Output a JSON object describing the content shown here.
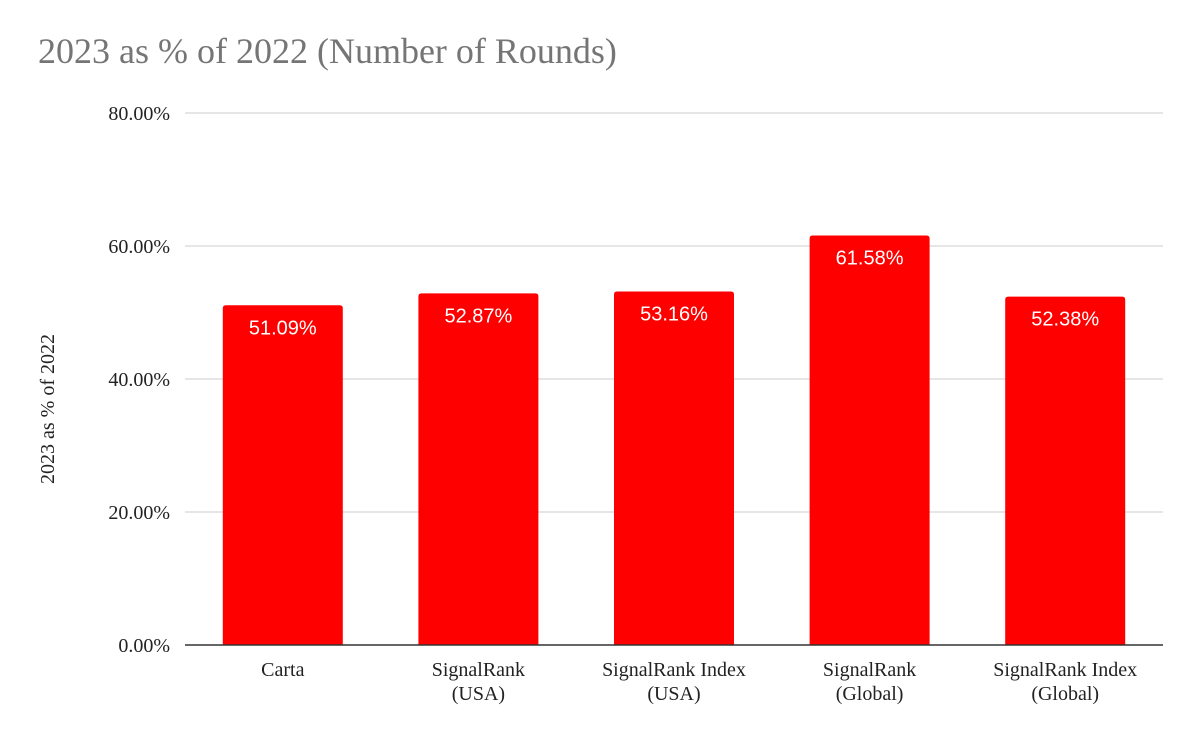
{
  "chart_data": {
    "type": "bar",
    "title": "2023 as % of 2022 (Number of Rounds)",
    "xlabel": "",
    "ylabel": "2023 as % of 2022",
    "categories": [
      [
        "Carta"
      ],
      [
        "SignalRank",
        "(USA)"
      ],
      [
        "SignalRank Index",
        "(USA)"
      ],
      [
        "SignalRank",
        "(Global)"
      ],
      [
        "SignalRank Index",
        "(Global)"
      ]
    ],
    "values": [
      51.09,
      52.87,
      53.16,
      61.58,
      52.38
    ],
    "data_labels": [
      "51.09%",
      "52.87%",
      "53.16%",
      "61.58%",
      "52.38%"
    ],
    "ylim": [
      0,
      80
    ],
    "yticks": [
      0,
      20,
      40,
      60,
      80
    ],
    "ytick_labels": [
      "0.00%",
      "20.00%",
      "40.00%",
      "60.00%",
      "80.00%"
    ],
    "grid": true,
    "legend": "none",
    "bar_color": "#ff0000"
  }
}
